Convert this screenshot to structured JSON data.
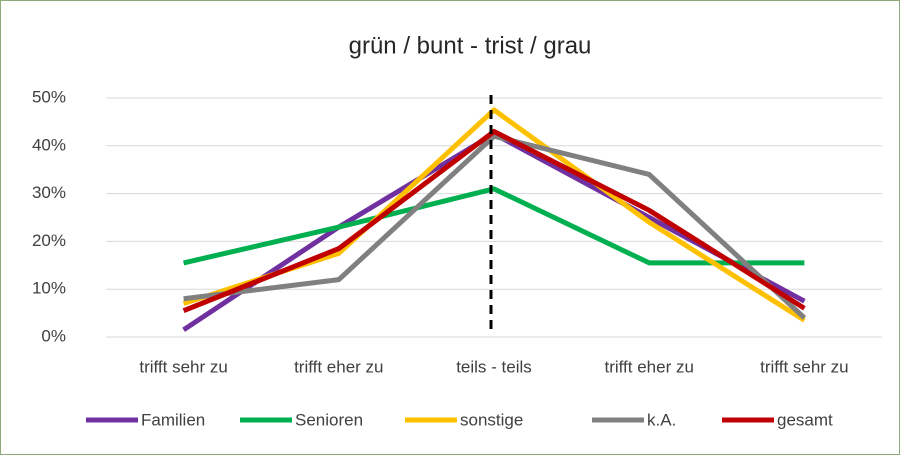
{
  "chart_data": {
    "type": "line",
    "title": "grün / bunt - trist / grau",
    "categories": [
      "trifft sehr zu",
      "trifft eher zu",
      "teils - teils",
      "trifft eher zu",
      "trifft sehr zu"
    ],
    "series": [
      {
        "name": "Familien",
        "color": "#7030a0",
        "values": [
          1.5,
          23,
          42.5,
          25,
          7.5
        ]
      },
      {
        "name": "Senioren",
        "color": "#00b050",
        "values": [
          15.5,
          23,
          31,
          15.5,
          15.5
        ]
      },
      {
        "name": "sonstige",
        "color": "#ffc000",
        "values": [
          7,
          17.5,
          47.5,
          24,
          3.5
        ]
      },
      {
        "name": "k.A.",
        "color": "#808080",
        "values": [
          8,
          12,
          42,
          34,
          4
        ]
      },
      {
        "name": "gesamt",
        "color": "#c00000",
        "values": [
          5.5,
          18.5,
          43,
          26.5,
          6
        ]
      }
    ],
    "ylim": [
      0,
      50
    ],
    "yticks": [
      {
        "value": 0,
        "label": "0%"
      },
      {
        "value": 10,
        "label": "10%"
      },
      {
        "value": 20,
        "label": "20%"
      },
      {
        "value": 30,
        "label": "30%"
      },
      {
        "value": 40,
        "label": "40%"
      },
      {
        "value": 50,
        "label": "50%"
      }
    ],
    "grid": true,
    "legend": "bottom"
  }
}
